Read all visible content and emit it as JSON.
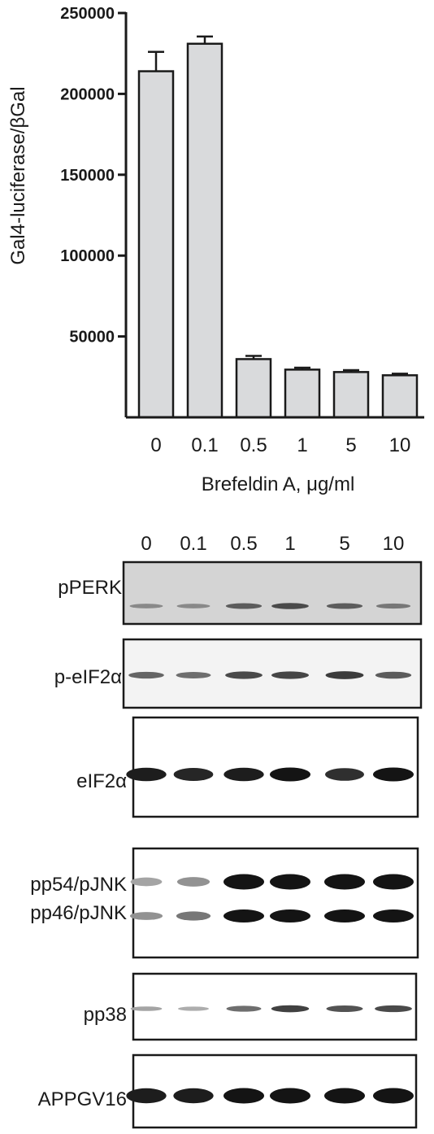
{
  "chart_data": {
    "type": "bar",
    "categories": [
      "0",
      "0.1",
      "0.5",
      "1",
      "5",
      "10"
    ],
    "values": [
      214000,
      231000,
      36000,
      29500,
      28000,
      26000
    ],
    "errors": [
      12000,
      4500,
      2000,
      1200,
      1200,
      1000
    ],
    "ylabel": "Gal4-luciferase/βGal",
    "xlabel": "Brefeldin A, μg/ml",
    "ylim": [
      0,
      250000
    ],
    "yticks": [
      50000,
      100000,
      150000,
      200000,
      250000
    ],
    "ytick_labels": [
      "50000",
      "100000",
      "150000",
      "200000",
      "250000"
    ],
    "grid": false,
    "bar_color": "#d9dadc",
    "edge_color": "#1a1a1a"
  },
  "blot": {
    "lane_labels": [
      "0",
      "0.1",
      "0.5",
      "1",
      "5",
      "10"
    ],
    "panels": [
      {
        "label": "pPERK",
        "intensity": [
          0.35,
          0.35,
          0.6,
          0.7,
          0.6,
          0.45
        ],
        "background": "#d4d4d4"
      },
      {
        "label": "p-eIF2α",
        "intensity": [
          0.55,
          0.5,
          0.7,
          0.72,
          0.78,
          0.6
        ],
        "background": "#f3f3f3"
      },
      {
        "label": "eIF2α",
        "intensity": [
          0.95,
          0.9,
          0.95,
          1.0,
          0.85,
          1.0
        ],
        "background": "#ffffff"
      },
      {
        "label": "pp54/pJNK",
        "label2": "pp46/pJNK",
        "intensity": [
          0.2,
          0.3,
          1.0,
          1.0,
          1.0,
          1.0
        ],
        "intensity2": [
          0.3,
          0.45,
          1.0,
          1.0,
          1.0,
          1.0
        ],
        "background": "#ffffff"
      },
      {
        "label": "pp38",
        "intensity": [
          0.2,
          0.15,
          0.5,
          0.75,
          0.65,
          0.7
        ],
        "background": "#ffffff"
      },
      {
        "label": "APPGV16",
        "intensity": [
          0.95,
          0.95,
          1.0,
          1.0,
          1.0,
          1.0
        ],
        "background": "#ffffff"
      }
    ]
  }
}
